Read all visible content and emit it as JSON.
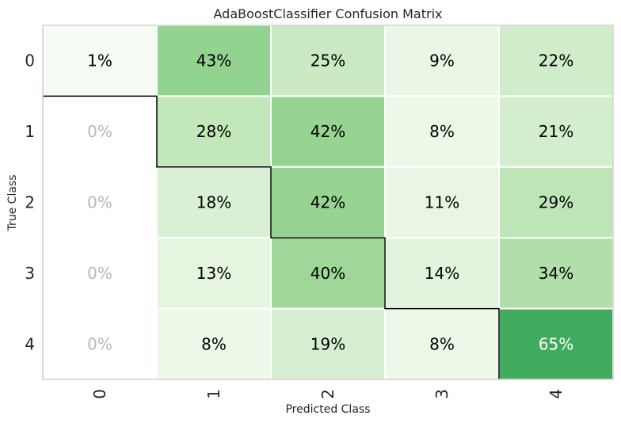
{
  "chart_data": {
    "type": "heatmap",
    "title": "AdaBoostClassifier Confusion Matrix",
    "xlabel": "Predicted Class",
    "ylabel": "True Class",
    "x_categories": [
      "0",
      "1",
      "2",
      "3",
      "4"
    ],
    "y_categories": [
      "0",
      "1",
      "2",
      "3",
      "4"
    ],
    "value_unit": "%",
    "matrix": [
      [
        1,
        43,
        25,
        9,
        22
      ],
      [
        0,
        28,
        42,
        8,
        21
      ],
      [
        0,
        18,
        42,
        11,
        29
      ],
      [
        0,
        13,
        40,
        14,
        34
      ],
      [
        0,
        8,
        19,
        8,
        65
      ]
    ],
    "colormap": [
      "#f7fcf5",
      "#e5f5e0",
      "#c7e9c0",
      "#a1d99b",
      "#74c476",
      "#41ab5d"
    ],
    "zero_cell_color": "#ffffff",
    "zero_text_color": "#b8b8b8",
    "text_color_dark": "#000000",
    "text_color_light": "#ffffff",
    "grid": false
  }
}
